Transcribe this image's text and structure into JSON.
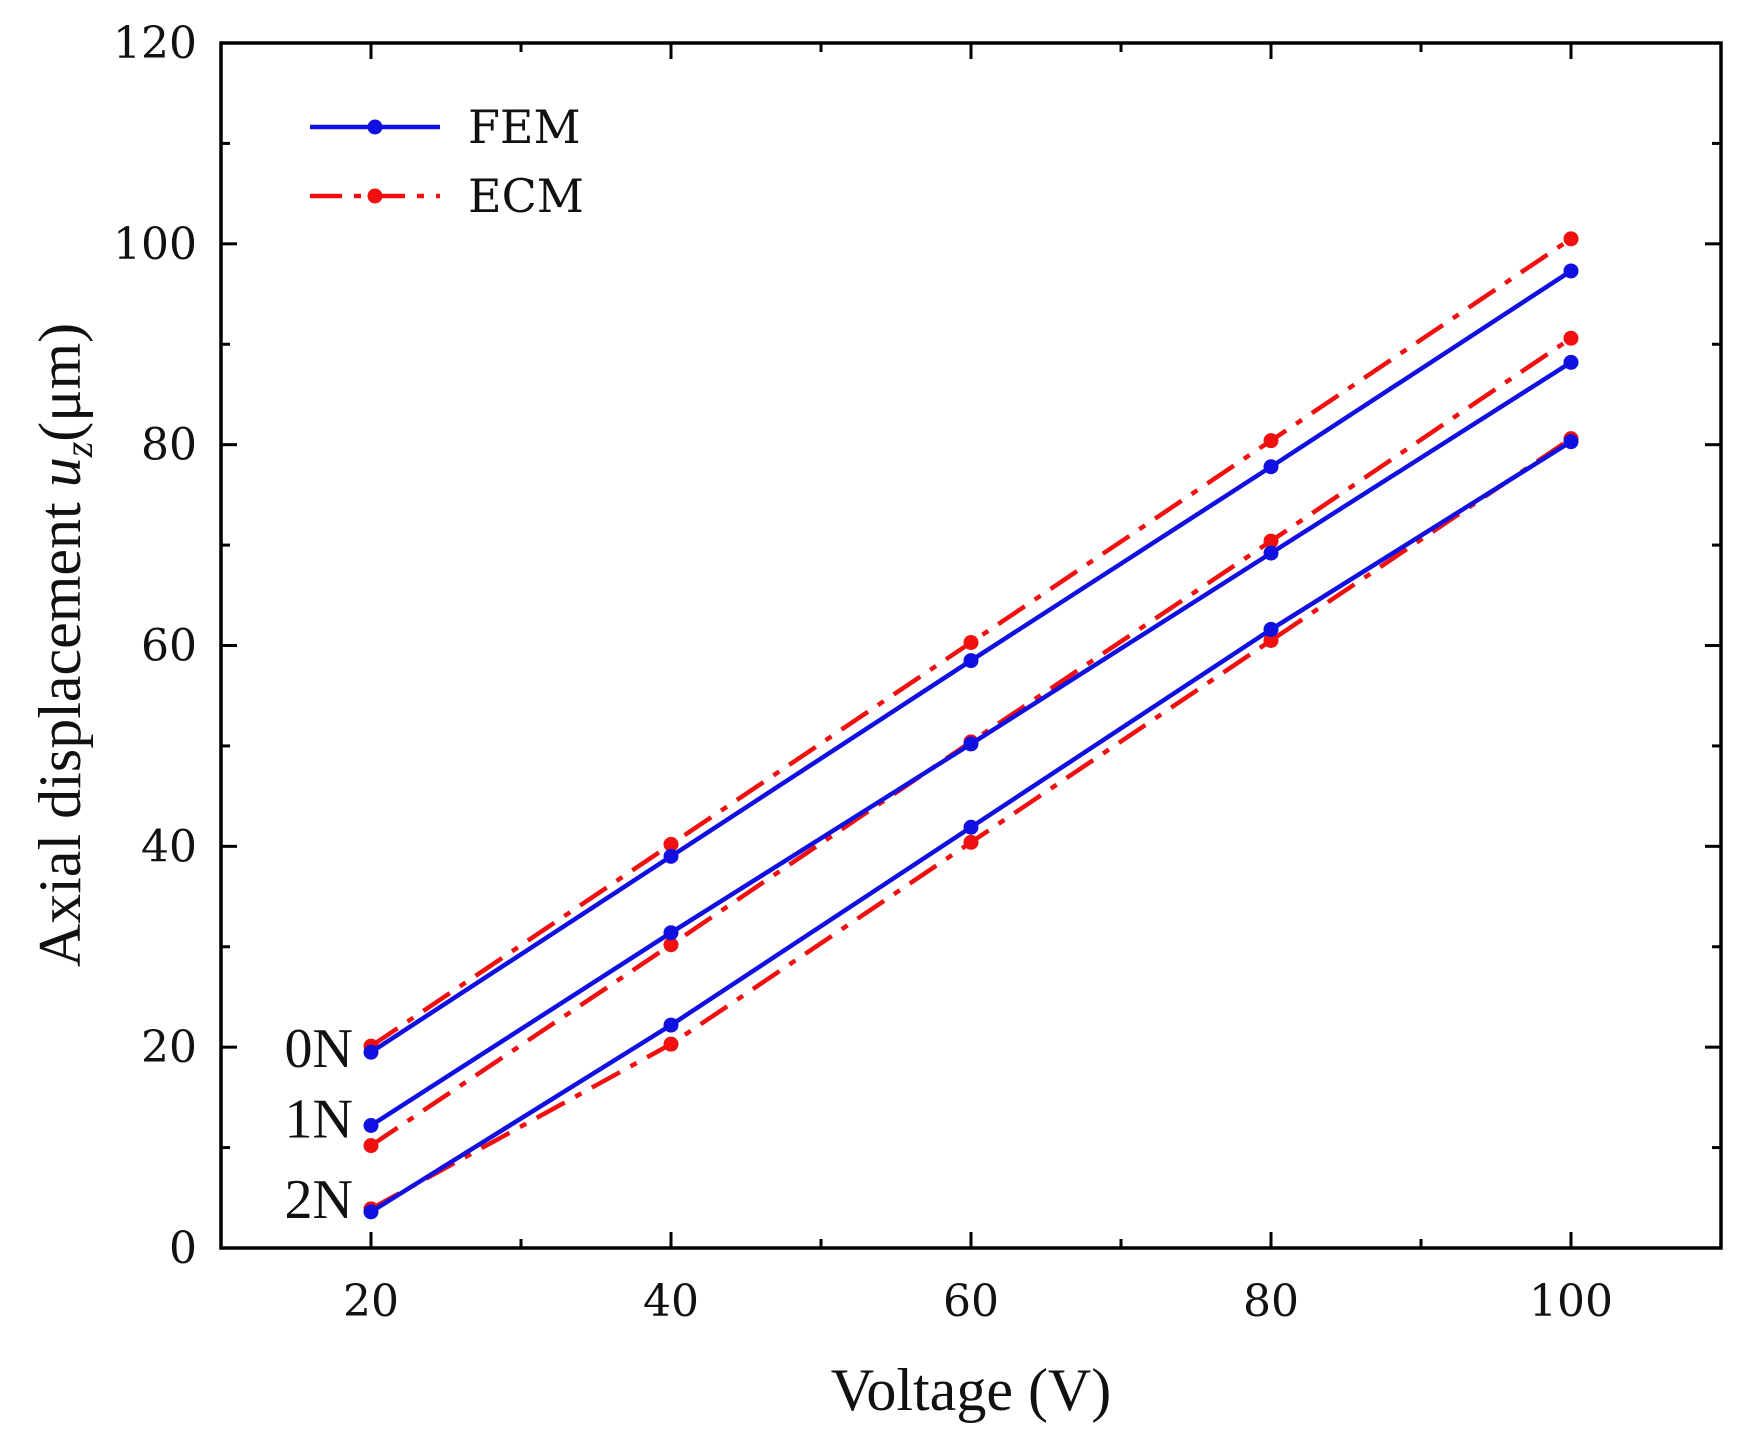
{
  "chart_data": {
    "type": "line",
    "title": "",
    "xlabel": "Voltage (V)",
    "ylabel_prefix": "Axial displacement ",
    "ylabel_var": "u",
    "ylabel_sub": "z",
    "ylabel_unit": "(μm)",
    "x": [
      20,
      40,
      60,
      80,
      100
    ],
    "xlim": [
      10,
      110
    ],
    "ylim": [
      0,
      120
    ],
    "xticks": [
      20,
      40,
      60,
      80,
      100
    ],
    "yticks": [
      0,
      20,
      40,
      60,
      80,
      100,
      120
    ],
    "legend_position": "top-left",
    "colors": {
      "FEM": "#1010e0",
      "ECM": "#f01010"
    },
    "legend": [
      {
        "name": "FEM",
        "style": "solid"
      },
      {
        "name": "ECM",
        "style": "dash-dot"
      }
    ],
    "groups": [
      {
        "label": "0N",
        "label_anchor": 20,
        "series": [
          {
            "name": "FEM",
            "values": [
              19.5,
              39.0,
              58.5,
              77.8,
              97.3
            ]
          },
          {
            "name": "ECM",
            "values": [
              20.1,
              40.2,
              60.3,
              80.4,
              100.5
            ]
          }
        ]
      },
      {
        "label": "1N",
        "label_anchor": 13,
        "series": [
          {
            "name": "FEM",
            "values": [
              12.2,
              31.4,
              50.2,
              69.2,
              88.2
            ]
          },
          {
            "name": "ECM",
            "values": [
              10.2,
              30.2,
              50.4,
              70.4,
              90.6
            ]
          }
        ]
      },
      {
        "label": "2N",
        "label_anchor": 5,
        "series": [
          {
            "name": "FEM",
            "values": [
              3.6,
              22.2,
              41.9,
              61.6,
              80.3
            ]
          },
          {
            "name": "ECM",
            "values": [
              3.9,
              20.3,
              40.4,
              60.5,
              80.6
            ]
          }
        ]
      }
    ]
  }
}
